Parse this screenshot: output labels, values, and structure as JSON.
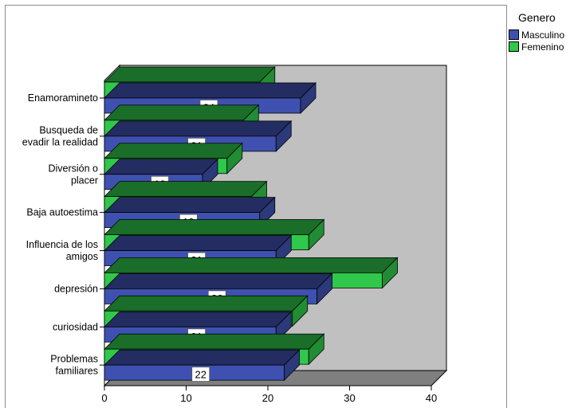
{
  "chart_data": {
    "type": "bar",
    "orientation": "horizontal",
    "three_d": true,
    "categories": [
      [
        "Enamoramineto"
      ],
      [
        "Busqueda de",
        "evadir la realidad"
      ],
      [
        "Diversión o",
        "placer"
      ],
      [
        "Baja autoestima"
      ],
      [
        "Influencia de los",
        "amigos"
      ],
      [
        "depresión"
      ],
      [
        "curiosidad"
      ],
      [
        "Problemas",
        "familiares"
      ]
    ],
    "series": [
      {
        "name": "Masculino",
        "values": [
          24,
          21,
          12,
          19,
          21,
          26,
          21,
          22
        ],
        "color": "#3f51b0"
      },
      {
        "name": "Femenino",
        "values": [
          19,
          17,
          15,
          18,
          25,
          34,
          23,
          25
        ],
        "color": "#2fc84a"
      }
    ],
    "xlim": [
      0,
      40
    ],
    "xticks": [
      0,
      10,
      20,
      30,
      40
    ],
    "data_labels": true,
    "legend": {
      "title": "Genero",
      "position": "right"
    },
    "colors": {
      "back_wall": "#c0c0c0",
      "floor": "#7f7f7f"
    }
  }
}
